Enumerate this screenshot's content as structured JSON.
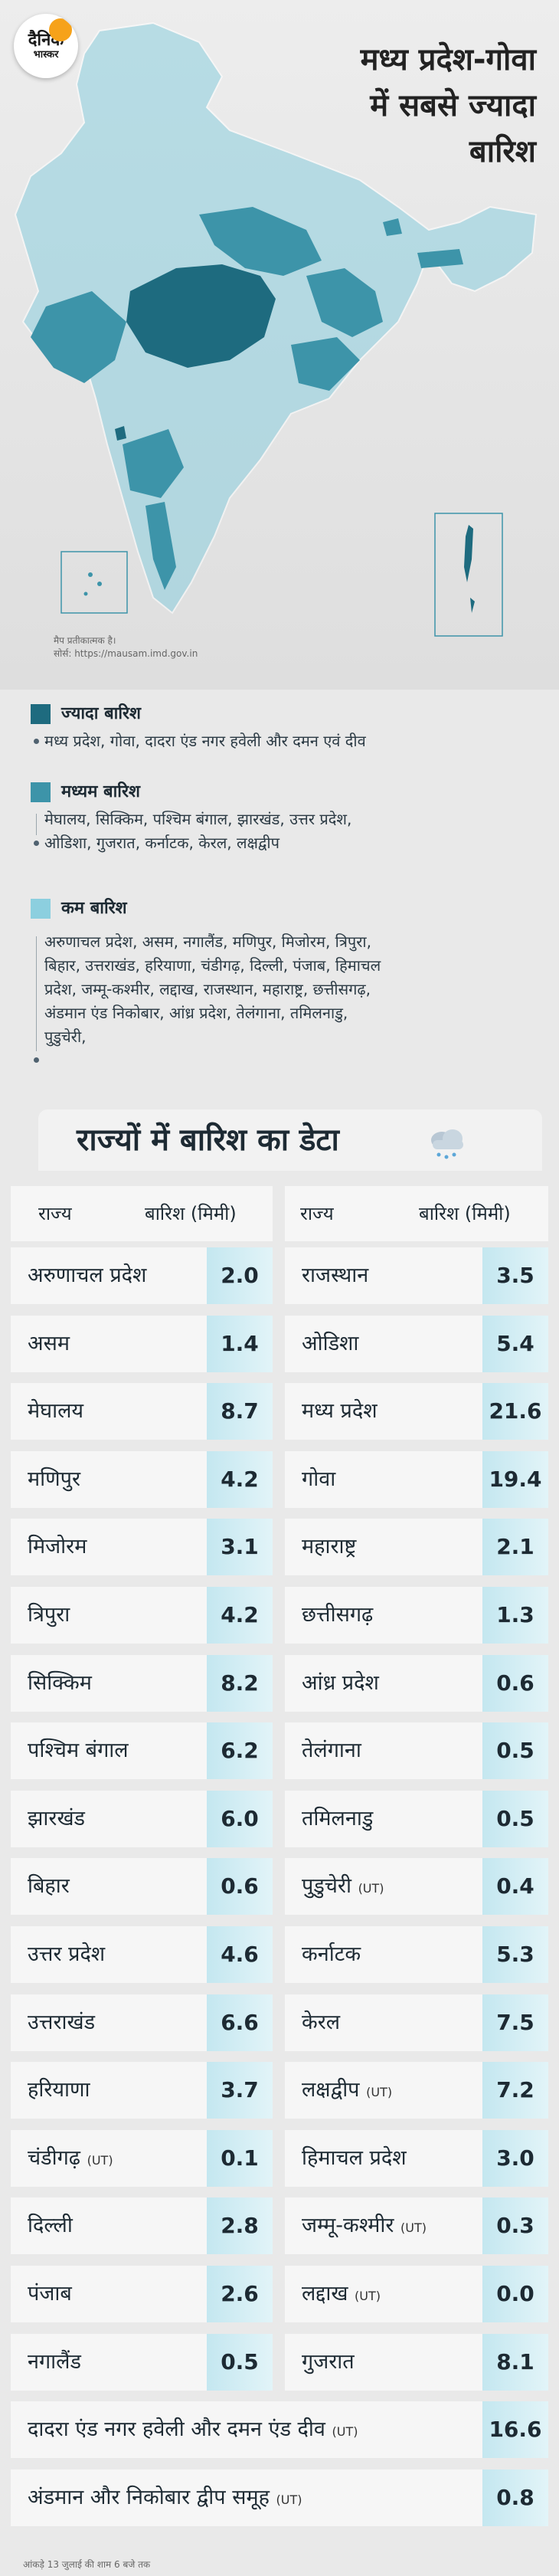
{
  "brand": {
    "logo_line1": "दैनिक",
    "logo_line2": "भास्कर"
  },
  "headline": {
    "line1": "मध्य प्रदेश-गोवा",
    "line2": "में सबसे ज्यादा",
    "line3": "बारिश"
  },
  "map_note": {
    "line1": "मैप प्रतीकात्मक है।",
    "line2": "सोर्स: https://mausam.imd.gov.in"
  },
  "colors": {
    "high": "#1e6b7f",
    "medium": "#3d94a9",
    "low": "#8ccfdf",
    "value_bg": "#cbe9f1"
  },
  "legend": [
    {
      "title": "ज्यादा बारिश",
      "color": "#1e6b7f",
      "lines": [
        "मध्य प्रदेश, गोवा, दादरा एंड नगर हवेली और दमन एवं दीव"
      ]
    },
    {
      "title": "मध्यम बारिश",
      "color": "#3d94a9",
      "lines": [
        "मेघालय, सिक्किम, पश्चिम बंगाल, झारखंड, उत्तर प्रदेश,",
        "ओडिशा, गुजरात, कर्नाटक, केरल, लक्षद्वीप"
      ]
    },
    {
      "title": "कम बारिश",
      "color": "#8ccfdf",
      "lines": [
        "अरुणाचल प्रदेश, असम, नगालैंड, मणिपुर, मिजोरम, त्रिपुरा,",
        "बिहार, उत्तराखंड, हरियाणा, चंडीगढ़, दिल्ली, पंजाब, हिमाचल",
        "प्रदेश, जम्मू-कश्मीर, लद्दाख, राजस्थान, महाराष्ट्र, छत्तीसगढ़,",
        "अंडमान एंड निकोबार, आंध्र प्रदेश, तेलंगाना, तमिलनाडु,",
        "पुडुचेरी,"
      ]
    }
  ],
  "table": {
    "title": "राज्यों में बारिश का डेटा",
    "icon": "rain-cloud-icon",
    "col_state": "राज्य",
    "col_rain": "बारिश (मिमी)",
    "left": [
      {
        "name": "अरुणाचल प्रदेश",
        "ut": "",
        "value": "2.0"
      },
      {
        "name": "असम",
        "ut": "",
        "value": "1.4"
      },
      {
        "name": "मेघालय",
        "ut": "",
        "value": "8.7"
      },
      {
        "name": "मणिपुर",
        "ut": "",
        "value": "4.2"
      },
      {
        "name": "मिजोरम",
        "ut": "",
        "value": "3.1"
      },
      {
        "name": "त्रिपुरा",
        "ut": "",
        "value": "4.2"
      },
      {
        "name": "सिक्किम",
        "ut": "",
        "value": "8.2"
      },
      {
        "name": "पश्चिम बंगाल",
        "ut": "",
        "value": "6.2"
      },
      {
        "name": "झारखंड",
        "ut": "",
        "value": "6.0"
      },
      {
        "name": "बिहार",
        "ut": "",
        "value": "0.6"
      },
      {
        "name": "उत्तर प्रदेश",
        "ut": "",
        "value": "4.6"
      },
      {
        "name": "उत्तराखंड",
        "ut": "",
        "value": "6.6"
      },
      {
        "name": "हरियाणा",
        "ut": "",
        "value": "3.7"
      },
      {
        "name": "चंडीगढ़",
        "ut": "(UT)",
        "value": "0.1"
      },
      {
        "name": "दिल्ली",
        "ut": "",
        "value": "2.8"
      },
      {
        "name": "पंजाब",
        "ut": "",
        "value": "2.6"
      },
      {
        "name": "नगालैंड",
        "ut": "",
        "value": "0.5"
      }
    ],
    "right": [
      {
        "name": "राजस्थान",
        "ut": "",
        "value": "3.5"
      },
      {
        "name": "ओडिशा",
        "ut": "",
        "value": "5.4"
      },
      {
        "name": "मध्य प्रदेश",
        "ut": "",
        "value": "21.6"
      },
      {
        "name": "गोवा",
        "ut": "",
        "value": "19.4"
      },
      {
        "name": "महाराष्ट्र",
        "ut": "",
        "value": "2.1"
      },
      {
        "name": "छत्तीसगढ़",
        "ut": "",
        "value": "1.3"
      },
      {
        "name": "आंध्र प्रदेश",
        "ut": "",
        "value": "0.6"
      },
      {
        "name": "तेलंगाना",
        "ut": "",
        "value": "0.5"
      },
      {
        "name": "तमिलनाडु",
        "ut": "",
        "value": "0.5"
      },
      {
        "name": "पुडुचेरी",
        "ut": "(UT)",
        "value": "0.4"
      },
      {
        "name": "कर्नाटक",
        "ut": "",
        "value": "5.3"
      },
      {
        "name": "केरल",
        "ut": "",
        "value": "7.5"
      },
      {
        "name": "लक्षद्वीप",
        "ut": "(UT)",
        "value": "7.2"
      },
      {
        "name": "हिमाचल प्रदेश",
        "ut": "",
        "value": "3.0"
      },
      {
        "name": "जम्मू-कश्मीर",
        "ut": "(UT)",
        "value": "0.3"
      },
      {
        "name": "लद्दाख",
        "ut": "(UT)",
        "value": "0.0"
      },
      {
        "name": "गुजरात",
        "ut": "",
        "value": "8.1"
      }
    ],
    "full": [
      {
        "name": "दादरा एंड नगर हवेली और दमन एंड दीव",
        "ut": "(UT)",
        "value": "16.6"
      },
      {
        "name": "अंडमान और निकोबार द्वीप समूह",
        "ut": "(UT)",
        "value": "0.8"
      }
    ]
  },
  "footer_note": "आंकड़े 13 जुलाई की शाम 6 बजे तक"
}
